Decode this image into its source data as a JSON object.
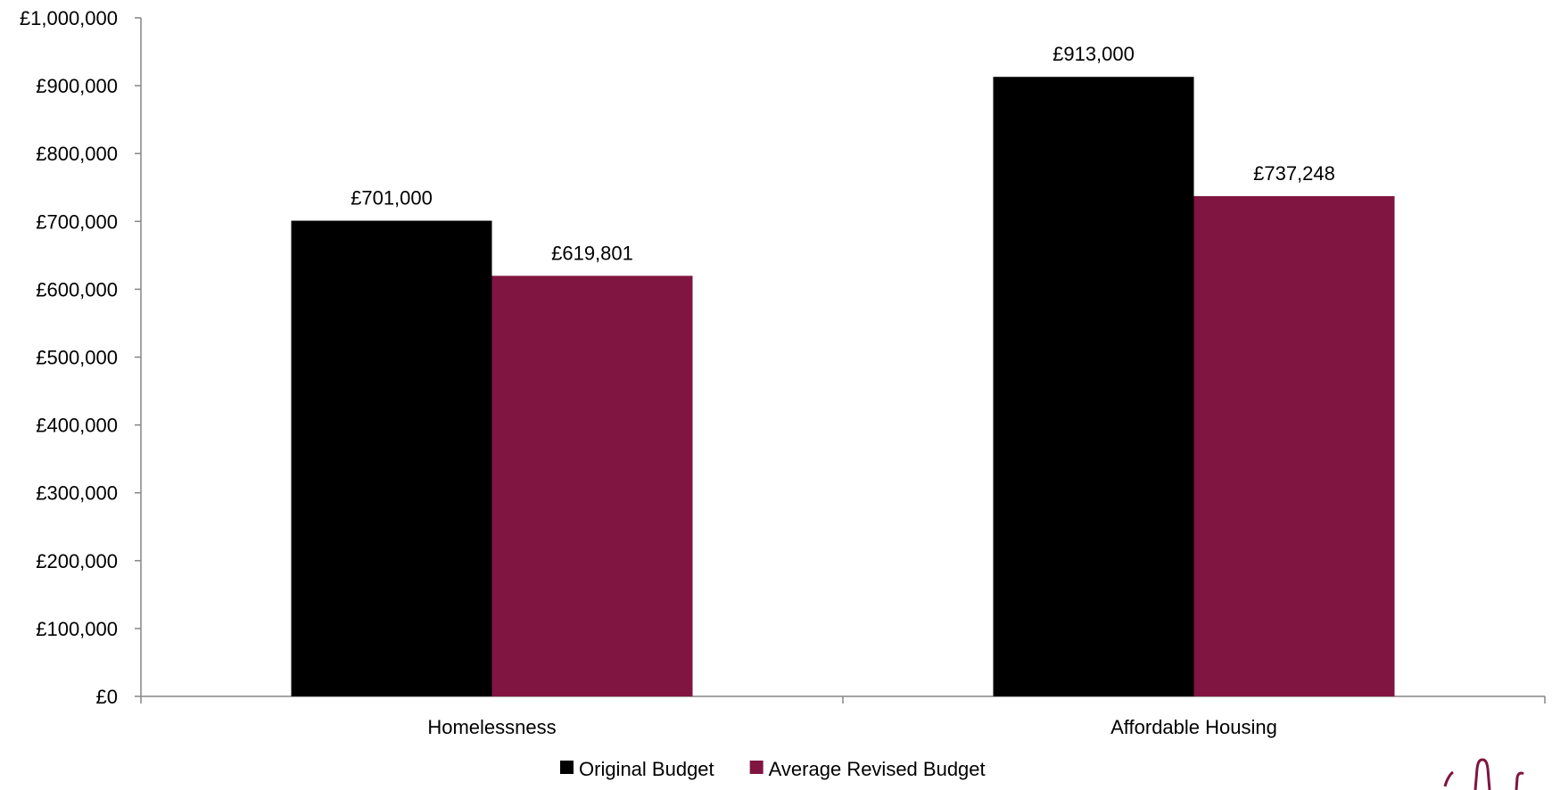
{
  "chart_data": {
    "type": "bar",
    "categories": [
      "Homelessness",
      "Affordable Housing"
    ],
    "series": [
      {
        "name": "Original Budget",
        "values": [
          701000,
          913000
        ],
        "labels": [
          "£701,000",
          "£913,000"
        ],
        "color": "#000000"
      },
      {
        "name": "Average Revised Budget",
        "values": [
          619801,
          737248
        ],
        "labels": [
          "£619,801",
          "£737,248"
        ],
        "color": "#7f1540"
      }
    ],
    "ylim": [
      0,
      1000000
    ],
    "yticks": [
      0,
      100000,
      200000,
      300000,
      400000,
      500000,
      600000,
      700000,
      800000,
      900000,
      1000000
    ],
    "ytick_labels": [
      "£0",
      "£100,000",
      "£200,000",
      "£300,000",
      "£400,000",
      "£500,000",
      "£600,000",
      "£700,000",
      "£800,000",
      "£900,000",
      "£1,000,000"
    ],
    "grid": false,
    "legend_position": "bottom",
    "xlabel": "",
    "ylabel": ""
  }
}
